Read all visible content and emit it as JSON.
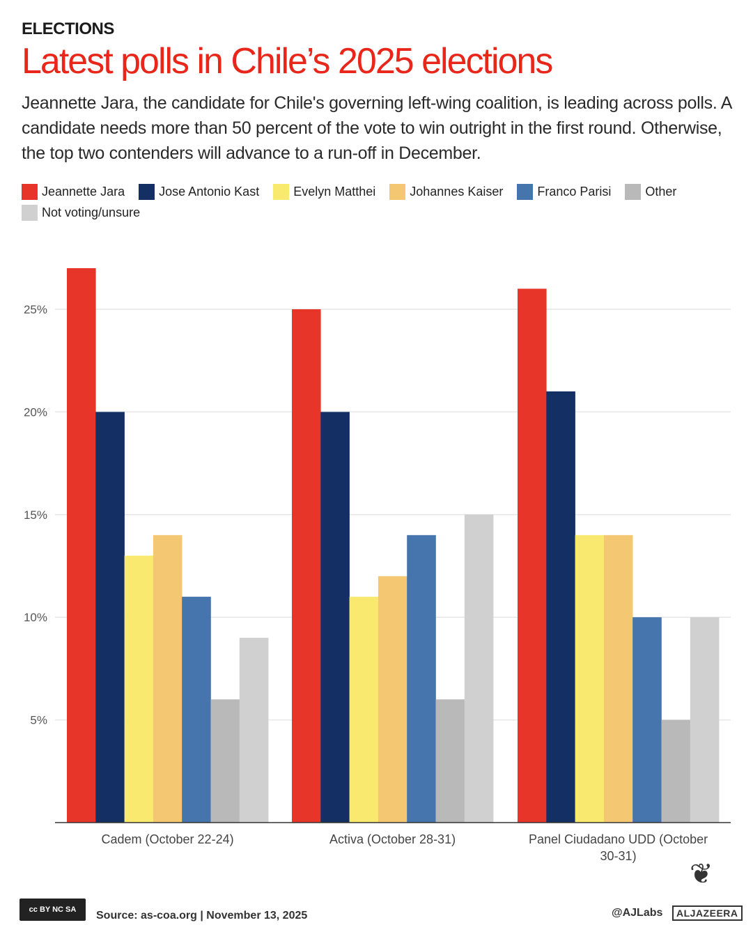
{
  "kicker": "ELECTIONS",
  "title": "Latest polls in Chile’s 2025 elections",
  "subtitle": "Jeannette Jara, the candidate for Chile's governing left-wing coalition, is leading across polls. A candidate needs more than 50 percent of the vote to win outright in the first round. Otherwise, the top two contenders will advance to a run-off in December.",
  "footer": {
    "license": "cc BY NC SA",
    "source": "Source: as-coa.org   |   November 13, 2025",
    "handle": "@AJLabs",
    "brand": "ALJAZEERA"
  },
  "chart_data": {
    "type": "bar",
    "categories": [
      "Cadem (October 22-24)",
      "Activa (October 28-31)",
      "Panel Ciudadano UDD (October 30-31)"
    ],
    "series": [
      {
        "name": "Jeannette Jara",
        "color": "#e8352a",
        "values": [
          27,
          25,
          26
        ]
      },
      {
        "name": "Jose Antonio Kast",
        "color": "#142f63",
        "values": [
          20,
          20,
          21
        ]
      },
      {
        "name": "Evelyn Matthei",
        "color": "#f9e96e",
        "values": [
          13,
          11,
          14
        ]
      },
      {
        "name": "Johannes Kaiser",
        "color": "#f4c872",
        "values": [
          14,
          12,
          14
        ]
      },
      {
        "name": "Franco Parisi",
        "color": "#4674ad",
        "values": [
          11,
          14,
          10
        ]
      },
      {
        "name": "Other",
        "color": "#b9b9b9",
        "values": [
          6,
          6,
          5
        ]
      },
      {
        "name": "Not voting/unsure",
        "color": "#d0d0d0",
        "values": [
          9,
          15,
          10
        ]
      }
    ],
    "yticks": [
      "5%",
      "10%",
      "15%",
      "20%",
      "25%"
    ],
    "ytick_values": [
      5,
      10,
      15,
      20,
      25
    ],
    "ylim": [
      0,
      27
    ],
    "grid": true,
    "legend": "top"
  }
}
